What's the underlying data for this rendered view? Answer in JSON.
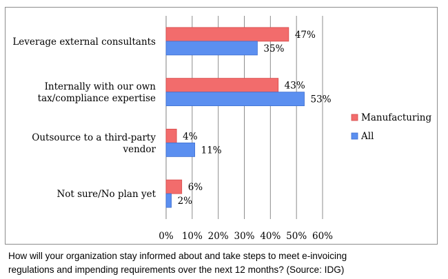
{
  "chart_data": {
    "type": "bar",
    "orientation": "horizontal",
    "categories": [
      [
        "Leverage external consultants"
      ],
      [
        "Internally with our own",
        "tax/compliance expertise"
      ],
      [
        "Outsource to a third-party",
        "vendor"
      ],
      [
        "Not sure/No plan yet"
      ]
    ],
    "series": [
      {
        "name": "Manufacturing",
        "color": "#f26c6c",
        "edge": "#d64a4a",
        "values": [
          47,
          43,
          4,
          6
        ]
      },
      {
        "name": "All",
        "color": "#5b8ff0",
        "edge": "#3f6fd0",
        "values": [
          35,
          53,
          11,
          2
        ]
      }
    ],
    "xlim": [
      0,
      60
    ],
    "xticks": [
      0,
      10,
      20,
      30,
      40,
      50,
      60
    ],
    "tick_suffix": "%",
    "value_suffix": "%",
    "grid": true,
    "legend": "right"
  },
  "caption": {
    "line1": "How will your organization stay informed about and take steps to meet e-invoicing",
    "line2": "regulations and impending requirements over the next 12 months? (Source: IDG)"
  }
}
